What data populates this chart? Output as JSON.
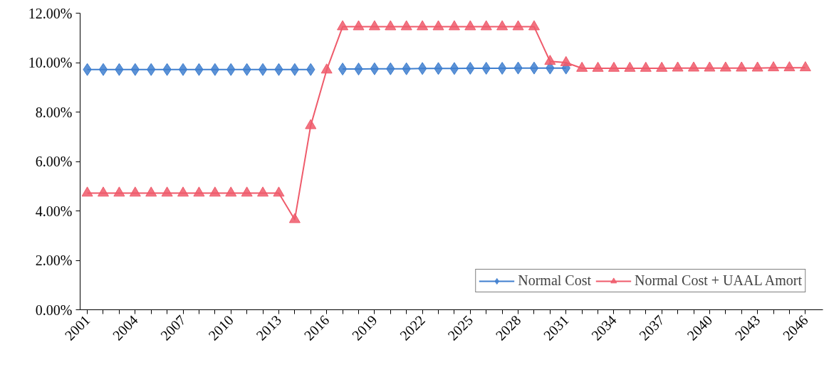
{
  "chart_data": {
    "type": "line",
    "categories": [
      "2001",
      null,
      null,
      "2004",
      null,
      null,
      "2007",
      null,
      null,
      "2010",
      null,
      null,
      "2013",
      null,
      null,
      "2016",
      null,
      null,
      "2019",
      null,
      null,
      "2022",
      null,
      null,
      "2025",
      null,
      null,
      "2028",
      null,
      null,
      "2031",
      null,
      null,
      "2034",
      null,
      null,
      "2037",
      null,
      null,
      "2040",
      null,
      null,
      "2043",
      null,
      null,
      "2046"
    ],
    "series": [
      {
        "name": "Normal Cost",
        "color": "#3f7fcf",
        "marker": "diamond",
        "values": [
          9.72,
          9.72,
          9.72,
          9.72,
          9.72,
          9.72,
          9.72,
          9.72,
          9.72,
          9.72,
          9.72,
          9.72,
          9.72,
          9.72,
          9.72,
          null,
          9.74,
          9.74,
          9.75,
          9.75,
          9.75,
          9.76,
          9.76,
          9.76,
          9.77,
          9.77,
          9.77,
          9.78,
          9.78,
          9.78,
          9.78,
          null,
          null,
          null,
          null,
          null,
          null,
          null,
          null,
          null,
          null,
          null,
          null,
          null,
          null,
          null
        ]
      },
      {
        "name": "Normal Cost + UAAL Amort",
        "color": "#ef5b6b",
        "marker": "triangle",
        "values": [
          4.72,
          4.72,
          4.72,
          4.72,
          4.72,
          4.72,
          4.72,
          4.72,
          4.72,
          4.72,
          4.72,
          4.72,
          4.72,
          3.65,
          7.45,
          9.7,
          11.45,
          11.45,
          11.45,
          11.45,
          11.45,
          11.45,
          11.45,
          11.45,
          11.45,
          11.45,
          11.45,
          11.45,
          11.45,
          10.05,
          10.0,
          9.77,
          9.77,
          9.77,
          9.77,
          9.77,
          9.77,
          9.78,
          9.78,
          9.78,
          9.78,
          9.78,
          9.78,
          9.79,
          9.79,
          9.79
        ]
      }
    ],
    "ylim": [
      0,
      12
    ],
    "yticks": [
      {
        "value": 0,
        "label": "0.00%"
      },
      {
        "value": 2,
        "label": "2.00%"
      },
      {
        "value": 4,
        "label": "4.00%"
      },
      {
        "value": 6,
        "label": "6.00%"
      },
      {
        "value": 8,
        "label": "8.00%"
      },
      {
        "value": 10,
        "label": "10.00%"
      },
      {
        "value": 12,
        "label": "12.00%"
      }
    ],
    "grid": false,
    "legend": "bottom right",
    "line_style": "solid"
  }
}
